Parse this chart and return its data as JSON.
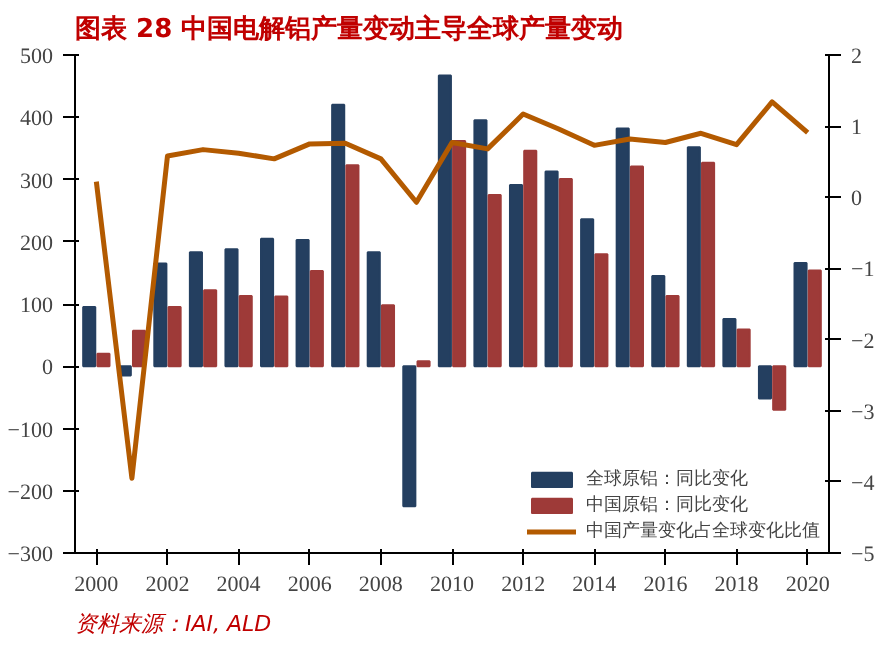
{
  "chart_data": {
    "type": "bar",
    "title": "图表 28   中国电解铝产量变动主导全球产量变动",
    "annotations": [
      "资料来源：IAI, ALD"
    ],
    "x": [
      2000,
      2001,
      2002,
      2003,
      2004,
      2005,
      2006,
      2007,
      2008,
      2009,
      2010,
      2011,
      2012,
      2013,
      2014,
      2015,
      2016,
      2017,
      2018,
      2019,
      2020
    ],
    "xlim": [
      1999.4,
      2020.6
    ],
    "xticks": [
      2000,
      2002,
      2004,
      2006,
      2008,
      2010,
      2012,
      2014,
      2016,
      2018,
      2020
    ],
    "ylim": [
      -300,
      500
    ],
    "yticks": [
      -300,
      -200,
      -100,
      0,
      100,
      200,
      300,
      400,
      500
    ],
    "y2lim": [
      -5,
      2
    ],
    "y2ticks": [
      -5,
      -4,
      -3,
      -2,
      -1,
      0,
      1,
      2
    ],
    "series": [
      {
        "name": "全球原铝：同比变化",
        "color": "#243f60",
        "values": [
          95,
          -15,
          165,
          183,
          188,
          205,
          203,
          420,
          183,
          -225,
          467,
          395,
          291,
          313,
          236,
          382,
          145,
          352,
          76,
          -52,
          166
        ]
      },
      {
        "name": "中国原铝：同比变化",
        "color": "#9e3a38",
        "values": [
          20,
          57,
          95,
          122,
          113,
          112,
          153,
          323,
          98,
          8,
          362,
          275,
          346,
          301,
          180,
          321,
          113,
          327,
          59,
          -70,
          154
        ]
      },
      {
        "name": "中国产量变化占全球变化比值",
        "type": "line",
        "axis": "y2",
        "color": "#b35a00",
        "values": [
          0.22,
          -3.95,
          0.58,
          0.67,
          0.62,
          0.54,
          0.75,
          0.76,
          0.54,
          -0.07,
          0.77,
          0.68,
          1.17,
          0.96,
          0.73,
          0.82,
          0.77,
          0.9,
          0.74,
          1.34,
          0.91
        ]
      }
    ],
    "grid": false,
    "legend": "bottom right"
  }
}
